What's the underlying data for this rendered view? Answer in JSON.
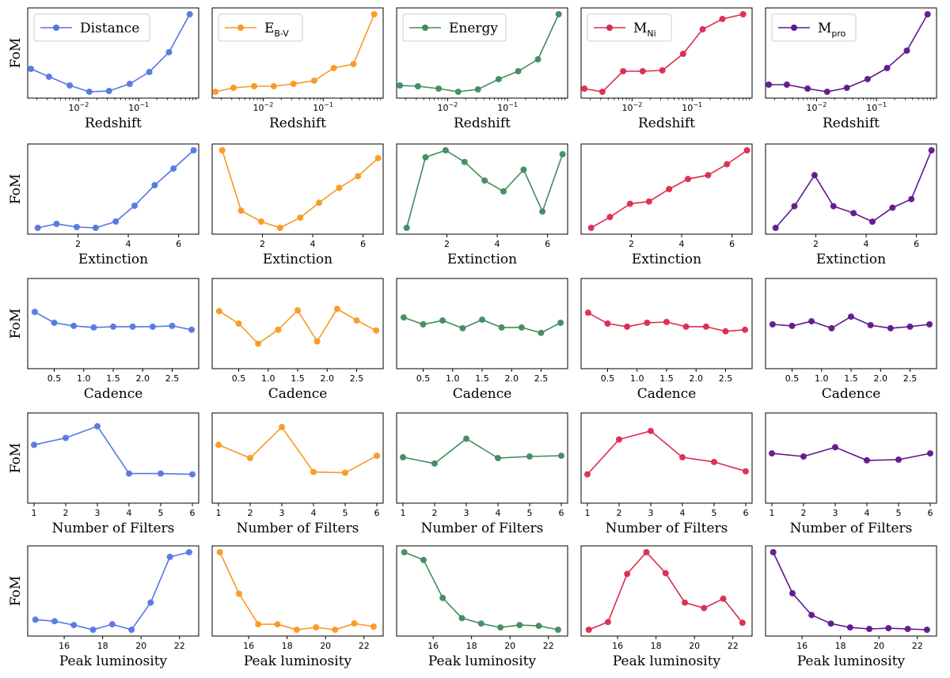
{
  "figure": {
    "series_colors": {
      "Distance": "#5577e3",
      "E_B-V": "#f99920",
      "Energy": "#3f8c5e",
      "M_Ni": "#dc2a4f",
      "M_pro": "#5e178c"
    },
    "ylabel": "FoM",
    "legends": [
      {
        "series": "Distance",
        "label": "Distance",
        "subscript": ""
      },
      {
        "series": "E_B-V",
        "label": "E",
        "subscript": "B-V"
      },
      {
        "series": "Energy",
        "label": "Energy",
        "subscript": ""
      },
      {
        "series": "M_Ni",
        "label": "M",
        "subscript": "Ni"
      },
      {
        "series": "M_pro",
        "label": "M",
        "subscript": "pro"
      }
    ]
  },
  "chart_data": [
    {
      "type": "line",
      "xlabel": "Redshift",
      "xscale": "log",
      "xlim_log10": [
        -2.85,
        0.0
      ],
      "x": [
        0.0016,
        0.0032,
        0.0071,
        0.015,
        0.032,
        0.071,
        0.15,
        0.32,
        0.71
      ],
      "xticks": [
        {
          "v": -2,
          "base": "10",
          "exp": "−2"
        },
        {
          "v": -1,
          "base": "10",
          "exp": "−1"
        }
      ],
      "series": [
        {
          "name": "Distance",
          "values": [
            0.31,
            0.21,
            0.1,
            0.02,
            0.03,
            0.12,
            0.27,
            0.52,
            1.0
          ]
        },
        {
          "name": "E_B-V",
          "values": [
            0.02,
            0.07,
            0.09,
            0.09,
            0.12,
            0.16,
            0.32,
            0.37,
            1.0
          ]
        },
        {
          "name": "Energy",
          "values": [
            0.1,
            0.09,
            0.06,
            0.02,
            0.05,
            0.18,
            0.28,
            0.43,
            1.0
          ]
        },
        {
          "name": "M_Ni",
          "values": [
            0.06,
            0.02,
            0.28,
            0.28,
            0.29,
            0.5,
            0.81,
            0.94,
            1.0
          ]
        },
        {
          "name": "M_pro",
          "values": [
            0.11,
            0.11,
            0.06,
            0.02,
            0.07,
            0.18,
            0.32,
            0.54,
            1.0
          ]
        }
      ]
    },
    {
      "type": "line",
      "xlabel": "Extinction",
      "xscale": "linear",
      "xlim": [
        0.0,
        6.8
      ],
      "x": [
        0.4,
        1.15,
        1.95,
        2.7,
        3.5,
        4.25,
        5.05,
        5.8,
        6.6
      ],
      "xticks": [
        {
          "v": 2,
          "label": "2"
        },
        {
          "v": 4,
          "label": "4"
        },
        {
          "v": 6,
          "label": "6"
        }
      ],
      "series": [
        {
          "name": "Distance",
          "values": [
            0.02,
            0.07,
            0.03,
            0.02,
            0.1,
            0.3,
            0.56,
            0.77,
            1.0
          ]
        },
        {
          "name": "E_B-V",
          "values": [
            1.0,
            0.23,
            0.09,
            0.01,
            0.14,
            0.33,
            0.52,
            0.67,
            0.9
          ]
        },
        {
          "name": "Energy",
          "values": [
            0.0,
            0.91,
            1.0,
            0.85,
            0.61,
            0.47,
            0.75,
            0.21,
            0.95
          ]
        },
        {
          "name": "M_Ni",
          "values": [
            0.0,
            0.14,
            0.31,
            0.34,
            0.5,
            0.63,
            0.68,
            0.82,
            1.0
          ]
        },
        {
          "name": "M_pro",
          "values": [
            0.0,
            0.28,
            0.68,
            0.28,
            0.19,
            0.08,
            0.26,
            0.37,
            1.0
          ]
        }
      ]
    },
    {
      "type": "line",
      "xlabel": "Cadence",
      "xscale": "linear",
      "xlim": [
        0.05,
        2.95
      ],
      "x": [
        0.17,
        0.5,
        0.83,
        1.17,
        1.5,
        1.83,
        2.17,
        2.5,
        2.83
      ],
      "xticks": [
        {
          "v": 0.5,
          "label": "0.5"
        },
        {
          "v": 1.0,
          "label": "1.0"
        },
        {
          "v": 1.5,
          "label": "1.5"
        },
        {
          "v": 2.0,
          "label": "2.0"
        },
        {
          "v": 2.5,
          "label": "2.5"
        }
      ],
      "ylim": [
        0,
        1
      ],
      "series": [
        {
          "name": "Distance",
          "values": [
            0.65,
            0.51,
            0.47,
            0.45,
            0.46,
            0.46,
            0.46,
            0.47,
            0.42
          ]
        },
        {
          "name": "E_B-V",
          "values": [
            0.66,
            0.5,
            0.24,
            0.42,
            0.67,
            0.27,
            0.69,
            0.54,
            0.41
          ]
        },
        {
          "name": "Energy",
          "values": [
            0.58,
            0.49,
            0.54,
            0.44,
            0.55,
            0.45,
            0.45,
            0.38,
            0.51
          ]
        },
        {
          "name": "M_Ni",
          "values": [
            0.64,
            0.5,
            0.46,
            0.51,
            0.52,
            0.46,
            0.46,
            0.4,
            0.42
          ]
        },
        {
          "name": "M_pro",
          "values": [
            0.49,
            0.47,
            0.53,
            0.44,
            0.59,
            0.48,
            0.44,
            0.46,
            0.49
          ]
        }
      ]
    },
    {
      "type": "line",
      "xlabel": "Number of Filters",
      "xscale": "linear",
      "xlim": [
        0.8,
        6.2
      ],
      "x": [
        1,
        2,
        3,
        4,
        5,
        6
      ],
      "xticks": [
        {
          "v": 1,
          "label": "1"
        },
        {
          "v": 2,
          "label": "2"
        },
        {
          "v": 3,
          "label": "3"
        },
        {
          "v": 4,
          "label": "4"
        },
        {
          "v": 5,
          "label": "5"
        },
        {
          "v": 6,
          "label": "6"
        }
      ],
      "ylim": [
        0,
        1
      ],
      "series": [
        {
          "name": "Distance",
          "values": [
            0.67,
            0.76,
            0.91,
            0.3,
            0.3,
            0.29
          ]
        },
        {
          "name": "E_B-V",
          "values": [
            0.67,
            0.5,
            0.9,
            0.32,
            0.31,
            0.53
          ]
        },
        {
          "name": "Energy",
          "values": [
            0.51,
            0.43,
            0.75,
            0.5,
            0.52,
            0.53
          ]
        },
        {
          "name": "M_Ni",
          "values": [
            0.29,
            0.74,
            0.85,
            0.51,
            0.45,
            0.33
          ]
        },
        {
          "name": "M_pro",
          "values": [
            0.56,
            0.52,
            0.64,
            0.47,
            0.48,
            0.56
          ]
        }
      ]
    },
    {
      "type": "line",
      "xlabel": "Peak luminosity",
      "xscale": "linear",
      "xlim": [
        14.1,
        23.0
      ],
      "x": [
        14.5,
        15.5,
        16.5,
        17.5,
        18.5,
        19.5,
        20.5,
        21.5,
        22.5
      ],
      "xticks": [
        {
          "v": 16,
          "label": "16"
        },
        {
          "v": 18,
          "label": "18"
        },
        {
          "v": 20,
          "label": "20"
        },
        {
          "v": 22,
          "label": "22"
        }
      ],
      "series": [
        {
          "name": "Distance",
          "values": [
            0.13,
            0.11,
            0.06,
            0.0,
            0.07,
            0.0,
            0.35,
            0.94,
            1.0
          ]
        },
        {
          "name": "E_B-V",
          "values": [
            1.0,
            0.47,
            0.08,
            0.08,
            0.01,
            0.04,
            0.01,
            0.09,
            0.05
          ]
        },
        {
          "name": "Energy",
          "values": [
            1.0,
            0.9,
            0.41,
            0.15,
            0.08,
            0.03,
            0.06,
            0.05,
            0.0
          ]
        },
        {
          "name": "M_Ni",
          "values": [
            0.0,
            0.1,
            0.72,
            1.0,
            0.73,
            0.35,
            0.28,
            0.4,
            0.09
          ]
        },
        {
          "name": "M_pro",
          "values": [
            1.0,
            0.47,
            0.19,
            0.08,
            0.03,
            0.01,
            0.02,
            0.01,
            0.0
          ]
        }
      ]
    }
  ]
}
